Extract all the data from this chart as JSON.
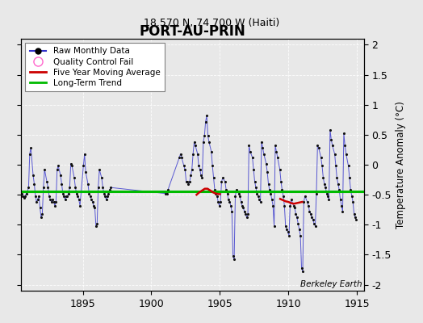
{
  "title": "PORT-AU-PRIN",
  "subtitle": "18.570 N, 74.700 W (Haiti)",
  "ylabel": "Temperature Anomaly (°C)",
  "watermark": "Berkeley Earth",
  "xlim": [
    1890.5,
    1915.5
  ],
  "ylim": [
    -2.1,
    2.1
  ],
  "yticks": [
    -2,
    -1.5,
    -1,
    -0.5,
    0,
    0.5,
    1,
    1.5,
    2
  ],
  "xticks": [
    1895,
    1900,
    1905,
    1910,
    1915
  ],
  "background_color": "#e8e8e8",
  "plot_bg_color": "#e8e8e8",
  "raw_color": "#3333cc",
  "dot_color": "#111111",
  "ma_color": "#cc0000",
  "trend_color": "#00bb00",
  "qc_color": "#ff66cc",
  "long_term_trend_intercept": -0.44,
  "raw_monthly_data": [
    [
      1890.042,
      0.3
    ],
    [
      1890.125,
      0.12
    ],
    [
      1890.208,
      -0.1
    ],
    [
      1890.375,
      -0.35
    ],
    [
      1890.458,
      -0.42
    ],
    [
      1890.542,
      -0.48
    ],
    [
      1890.625,
      -0.52
    ],
    [
      1890.708,
      -0.55
    ],
    [
      1890.792,
      -0.52
    ],
    [
      1890.875,
      -0.48
    ],
    [
      1890.958,
      -0.44
    ],
    [
      1891.042,
      -0.38
    ],
    [
      1891.125,
      0.18
    ],
    [
      1891.208,
      0.28
    ],
    [
      1891.375,
      -0.18
    ],
    [
      1891.458,
      -0.32
    ],
    [
      1891.542,
      -0.52
    ],
    [
      1891.625,
      -0.62
    ],
    [
      1891.708,
      -0.58
    ],
    [
      1891.792,
      -0.52
    ],
    [
      1891.875,
      -0.72
    ],
    [
      1891.958,
      -0.88
    ],
    [
      1892.042,
      -0.82
    ],
    [
      1892.125,
      -0.38
    ],
    [
      1892.208,
      -0.08
    ],
    [
      1892.375,
      -0.28
    ],
    [
      1892.458,
      -0.38
    ],
    [
      1892.542,
      -0.52
    ],
    [
      1892.625,
      -0.58
    ],
    [
      1892.708,
      -0.62
    ],
    [
      1892.792,
      -0.58
    ],
    [
      1892.875,
      -0.62
    ],
    [
      1892.958,
      -0.68
    ],
    [
      1893.042,
      -0.62
    ],
    [
      1893.125,
      -0.08
    ],
    [
      1893.208,
      -0.02
    ],
    [
      1893.375,
      -0.18
    ],
    [
      1893.458,
      -0.32
    ],
    [
      1893.542,
      -0.48
    ],
    [
      1893.625,
      -0.52
    ],
    [
      1893.708,
      -0.58
    ],
    [
      1893.792,
      -0.52
    ],
    [
      1893.875,
      -0.52
    ],
    [
      1893.958,
      -0.48
    ],
    [
      1894.042,
      -0.38
    ],
    [
      1894.125,
      0.02
    ],
    [
      1894.208,
      -0.02
    ],
    [
      1894.375,
      -0.22
    ],
    [
      1894.458,
      -0.38
    ],
    [
      1894.542,
      -0.48
    ],
    [
      1894.625,
      -0.52
    ],
    [
      1894.708,
      -0.58
    ],
    [
      1894.792,
      -0.68
    ],
    [
      1895.042,
      -0.02
    ],
    [
      1895.125,
      0.18
    ],
    [
      1895.208,
      -0.12
    ],
    [
      1895.375,
      -0.32
    ],
    [
      1895.458,
      -0.48
    ],
    [
      1895.542,
      -0.52
    ],
    [
      1895.625,
      -0.58
    ],
    [
      1895.708,
      -0.62
    ],
    [
      1895.792,
      -0.68
    ],
    [
      1895.875,
      -0.72
    ],
    [
      1895.958,
      -1.02
    ],
    [
      1896.042,
      -0.98
    ],
    [
      1896.125,
      -0.38
    ],
    [
      1896.208,
      -0.08
    ],
    [
      1896.375,
      -0.22
    ],
    [
      1896.458,
      -0.38
    ],
    [
      1896.542,
      -0.48
    ],
    [
      1896.625,
      -0.52
    ],
    [
      1896.708,
      -0.58
    ],
    [
      1896.792,
      -0.52
    ],
    [
      1896.875,
      -0.48
    ],
    [
      1896.958,
      -0.42
    ],
    [
      1897.042,
      -0.38
    ],
    [
      1901.042,
      -0.48
    ],
    [
      1901.125,
      -0.48
    ],
    [
      1901.208,
      -0.42
    ],
    [
      1902.042,
      0.12
    ],
    [
      1902.125,
      0.18
    ],
    [
      1902.208,
      0.12
    ],
    [
      1902.375,
      -0.02
    ],
    [
      1902.458,
      -0.08
    ],
    [
      1902.542,
      -0.28
    ],
    [
      1902.625,
      -0.28
    ],
    [
      1902.708,
      -0.32
    ],
    [
      1902.792,
      -0.28
    ],
    [
      1902.875,
      -0.18
    ],
    [
      1902.958,
      -0.08
    ],
    [
      1903.042,
      0.18
    ],
    [
      1903.125,
      0.38
    ],
    [
      1903.208,
      0.32
    ],
    [
      1903.375,
      0.18
    ],
    [
      1903.458,
      -0.02
    ],
    [
      1903.542,
      -0.08
    ],
    [
      1903.625,
      -0.18
    ],
    [
      1903.708,
      -0.22
    ],
    [
      1903.792,
      0.38
    ],
    [
      1903.875,
      0.48
    ],
    [
      1903.958,
      0.72
    ],
    [
      1904.042,
      0.82
    ],
    [
      1904.125,
      0.48
    ],
    [
      1904.208,
      0.38
    ],
    [
      1904.375,
      0.22
    ],
    [
      1904.458,
      -0.02
    ],
    [
      1904.542,
      -0.22
    ],
    [
      1904.625,
      -0.42
    ],
    [
      1904.708,
      -0.48
    ],
    [
      1904.792,
      -0.52
    ],
    [
      1904.875,
      -0.62
    ],
    [
      1904.958,
      -0.68
    ],
    [
      1905.042,
      -0.62
    ],
    [
      1905.125,
      -0.28
    ],
    [
      1905.208,
      -0.22
    ],
    [
      1905.375,
      -0.28
    ],
    [
      1905.458,
      -0.42
    ],
    [
      1905.542,
      -0.48
    ],
    [
      1905.625,
      -0.58
    ],
    [
      1905.708,
      -0.62
    ],
    [
      1905.792,
      -0.68
    ],
    [
      1905.875,
      -0.78
    ],
    [
      1905.958,
      -1.52
    ],
    [
      1906.042,
      -1.58
    ],
    [
      1906.125,
      -0.52
    ],
    [
      1906.208,
      -0.42
    ],
    [
      1906.375,
      -0.48
    ],
    [
      1906.458,
      -0.52
    ],
    [
      1906.542,
      -0.62
    ],
    [
      1906.625,
      -0.68
    ],
    [
      1906.708,
      -0.72
    ],
    [
      1906.792,
      -0.78
    ],
    [
      1906.875,
      -0.82
    ],
    [
      1906.958,
      -0.88
    ],
    [
      1907.042,
      -0.82
    ],
    [
      1907.125,
      0.32
    ],
    [
      1907.208,
      0.22
    ],
    [
      1907.375,
      0.12
    ],
    [
      1907.458,
      -0.08
    ],
    [
      1907.542,
      -0.28
    ],
    [
      1907.625,
      -0.38
    ],
    [
      1907.708,
      -0.48
    ],
    [
      1907.792,
      -0.52
    ],
    [
      1907.875,
      -0.58
    ],
    [
      1907.958,
      -0.62
    ],
    [
      1908.042,
      0.38
    ],
    [
      1908.125,
      0.28
    ],
    [
      1908.208,
      0.18
    ],
    [
      1908.375,
      0.02
    ],
    [
      1908.458,
      -0.12
    ],
    [
      1908.542,
      -0.32
    ],
    [
      1908.625,
      -0.42
    ],
    [
      1908.708,
      -0.48
    ],
    [
      1908.792,
      -0.58
    ],
    [
      1908.875,
      -0.68
    ],
    [
      1908.958,
      -1.02
    ],
    [
      1909.042,
      0.32
    ],
    [
      1909.125,
      0.22
    ],
    [
      1909.208,
      0.12
    ],
    [
      1909.375,
      -0.08
    ],
    [
      1909.458,
      -0.28
    ],
    [
      1909.542,
      -0.42
    ],
    [
      1909.625,
      -0.52
    ],
    [
      1909.708,
      -0.68
    ],
    [
      1909.792,
      -1.02
    ],
    [
      1909.875,
      -1.08
    ],
    [
      1909.958,
      -1.12
    ],
    [
      1910.042,
      -1.18
    ],
    [
      1910.125,
      -0.68
    ],
    [
      1910.208,
      -0.58
    ],
    [
      1910.375,
      -0.68
    ],
    [
      1910.458,
      -0.72
    ],
    [
      1910.542,
      -0.82
    ],
    [
      1910.625,
      -0.88
    ],
    [
      1910.708,
      -0.98
    ],
    [
      1910.792,
      -1.08
    ],
    [
      1910.875,
      -1.18
    ],
    [
      1910.958,
      -1.72
    ],
    [
      1911.042,
      -1.78
    ],
    [
      1911.125,
      -0.62
    ],
    [
      1911.208,
      -0.52
    ],
    [
      1911.375,
      -0.62
    ],
    [
      1911.458,
      -0.68
    ],
    [
      1911.542,
      -0.78
    ],
    [
      1911.625,
      -0.82
    ],
    [
      1911.708,
      -0.88
    ],
    [
      1911.792,
      -0.92
    ],
    [
      1911.875,
      -0.98
    ],
    [
      1911.958,
      -1.02
    ],
    [
      1912.042,
      -0.48
    ],
    [
      1912.125,
      0.32
    ],
    [
      1912.208,
      0.28
    ],
    [
      1912.375,
      0.12
    ],
    [
      1912.458,
      -0.02
    ],
    [
      1912.542,
      -0.22
    ],
    [
      1912.625,
      -0.32
    ],
    [
      1912.708,
      -0.38
    ],
    [
      1912.792,
      -0.48
    ],
    [
      1912.875,
      -0.52
    ],
    [
      1912.958,
      -0.58
    ],
    [
      1913.042,
      0.58
    ],
    [
      1913.125,
      0.42
    ],
    [
      1913.208,
      0.32
    ],
    [
      1913.375,
      0.18
    ],
    [
      1913.458,
      -0.02
    ],
    [
      1913.542,
      -0.22
    ],
    [
      1913.625,
      -0.32
    ],
    [
      1913.708,
      -0.42
    ],
    [
      1913.792,
      -0.58
    ],
    [
      1913.875,
      -0.68
    ],
    [
      1913.958,
      -0.78
    ],
    [
      1914.042,
      0.52
    ],
    [
      1914.125,
      0.32
    ],
    [
      1914.208,
      0.18
    ],
    [
      1914.375,
      -0.02
    ],
    [
      1914.458,
      -0.22
    ],
    [
      1914.542,
      -0.42
    ],
    [
      1914.625,
      -0.52
    ],
    [
      1914.708,
      -0.62
    ],
    [
      1914.792,
      -0.82
    ],
    [
      1914.875,
      -0.88
    ],
    [
      1914.958,
      -0.92
    ]
  ],
  "five_year_ma": [
    [
      1903.3,
      -0.5
    ],
    [
      1903.5,
      -0.46
    ],
    [
      1903.7,
      -0.43
    ],
    [
      1903.9,
      -0.4
    ],
    [
      1904.1,
      -0.4
    ],
    [
      1904.3,
      -0.43
    ],
    [
      1904.5,
      -0.46
    ],
    [
      1904.7,
      -0.48
    ],
    [
      1904.9,
      -0.49
    ],
    [
      1905.0,
      -0.49
    ]
  ],
  "five_year_ma2": [
    [
      1909.4,
      -0.57
    ],
    [
      1909.6,
      -0.59
    ],
    [
      1909.8,
      -0.61
    ],
    [
      1910.0,
      -0.62
    ],
    [
      1910.2,
      -0.64
    ],
    [
      1910.4,
      -0.65
    ],
    [
      1910.6,
      -0.64
    ],
    [
      1910.8,
      -0.63
    ],
    [
      1911.0,
      -0.62
    ]
  ]
}
